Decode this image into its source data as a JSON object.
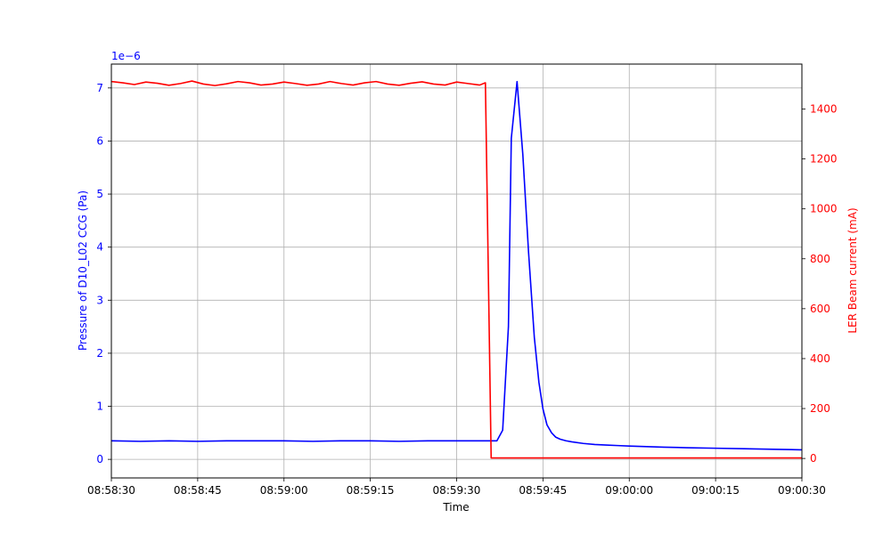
{
  "chart_data": {
    "type": "line",
    "xlabel": "Time",
    "x_ticks": [
      "08:58:30",
      "08:58:45",
      "08:59:00",
      "08:59:15",
      "08:59:30",
      "08:59:45",
      "09:00:00",
      "09:00:15",
      "09:00:30"
    ],
    "x_tick_seconds": [
      0,
      15,
      30,
      45,
      60,
      75,
      90,
      105,
      120
    ],
    "xlim_seconds": [
      0,
      120
    ],
    "grid": true,
    "left_axis": {
      "label": "Pressure of D10_L02 CCG (Pa)",
      "color": "#0000ff",
      "exponent_label": "1e−6",
      "ticks": [
        0,
        1,
        2,
        3,
        4,
        5,
        6,
        7
      ],
      "ylim": [
        -0.35,
        7.45
      ]
    },
    "right_axis": {
      "label": "LER Beam current (mA)",
      "color": "#ff0000",
      "ticks": [
        0,
        200,
        400,
        600,
        800,
        1000,
        1200,
        1400
      ],
      "ylim": [
        -78,
        1580
      ]
    },
    "series": [
      {
        "axis": "left",
        "color": "#0000ff",
        "x": [
          0,
          5,
          10,
          15,
          20,
          25,
          30,
          35,
          40,
          45,
          50,
          55,
          60,
          63,
          66,
          67,
          68,
          69,
          69.5,
          70.5,
          71.5,
          72.5,
          73.5,
          74.3,
          75,
          75.7,
          76.5,
          77.2,
          78,
          79,
          80,
          82,
          84,
          86,
          88,
          90,
          93,
          96,
          100,
          105,
          110,
          115,
          120
        ],
        "y": [
          0.35,
          0.34,
          0.35,
          0.34,
          0.35,
          0.35,
          0.35,
          0.34,
          0.35,
          0.35,
          0.34,
          0.35,
          0.35,
          0.35,
          0.35,
          0.35,
          0.55,
          2.5,
          6.05,
          7.12,
          5.75,
          3.9,
          2.3,
          1.45,
          0.95,
          0.65,
          0.5,
          0.42,
          0.38,
          0.35,
          0.33,
          0.3,
          0.28,
          0.27,
          0.26,
          0.25,
          0.24,
          0.23,
          0.22,
          0.21,
          0.2,
          0.19,
          0.18
        ]
      },
      {
        "axis": "right",
        "color": "#ff0000",
        "x": [
          0,
          2,
          4,
          6,
          8,
          10,
          12,
          14,
          16,
          18,
          20,
          22,
          24,
          26,
          28,
          30,
          32,
          34,
          36,
          38,
          40,
          42,
          44,
          46,
          48,
          50,
          52,
          54,
          56,
          58,
          60,
          62,
          64,
          65,
          66,
          70,
          80,
          90,
          100,
          110,
          120
        ],
        "y": [
          1510,
          1505,
          1498,
          1508,
          1503,
          1495,
          1502,
          1512,
          1500,
          1494,
          1501,
          1510,
          1505,
          1496,
          1500,
          1508,
          1502,
          1495,
          1500,
          1510,
          1502,
          1496,
          1505,
          1510,
          1500,
          1495,
          1503,
          1509,
          1500,
          1496,
          1508,
          1502,
          1496,
          1505,
          2,
          2,
          2,
          2,
          2,
          2,
          2
        ]
      }
    ]
  }
}
